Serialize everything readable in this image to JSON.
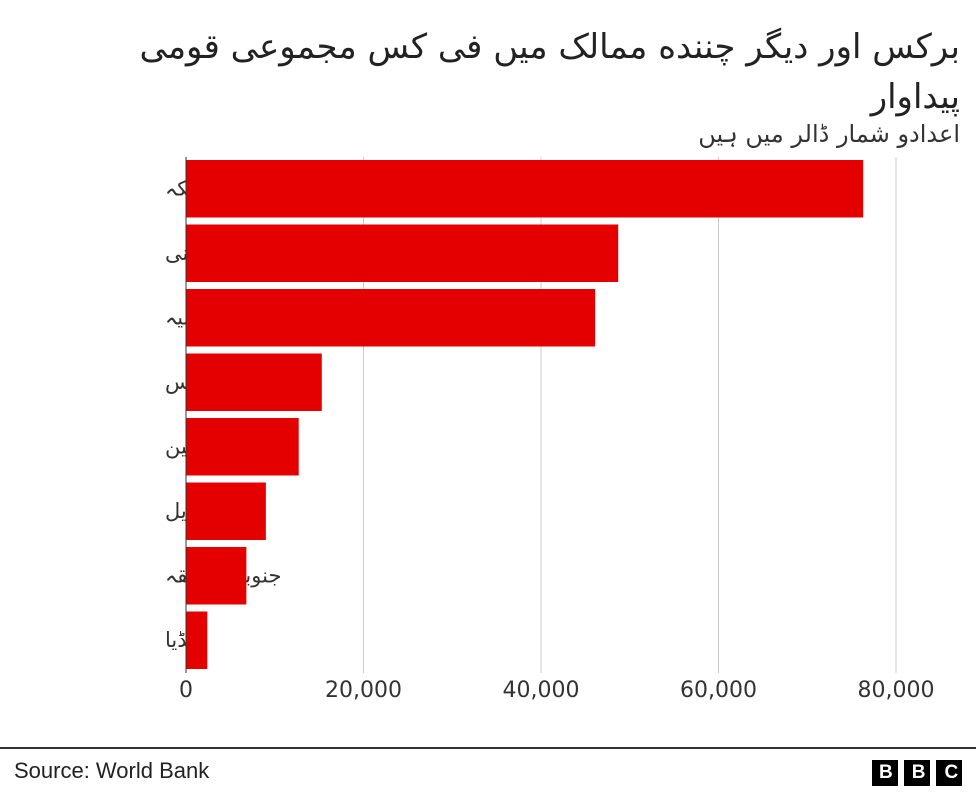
{
  "chart_data": {
    "type": "bar",
    "orientation": "horizontal",
    "title": "برکس اور دیگر چننده ممالک میں فی کس مجموعی قومی پیداوار",
    "subtitle": "اعدادو شمار ڈالر میں ہیں",
    "categories": [
      "امریکہ",
      "جرمنی",
      "برطانیہ",
      "روس",
      "چین",
      "برازیل",
      "جنوبی افریقہ",
      "انڈیا"
    ],
    "values": [
      76300,
      48700,
      46100,
      15300,
      12700,
      9000,
      6800,
      2400
    ],
    "color": "#e50000",
    "xlim": [
      0,
      80000
    ],
    "xticks": [
      0,
      {
        "value": 20000,
        "label": "20,000"
      },
      {
        "value": 40000,
        "label": "40,000"
      },
      {
        "value": 60000,
        "label": "60,000"
      },
      {
        "value": 80000,
        "label": "80,000"
      }
    ],
    "grid": true,
    "source": "Source: World Bank",
    "logo": "BBC"
  }
}
